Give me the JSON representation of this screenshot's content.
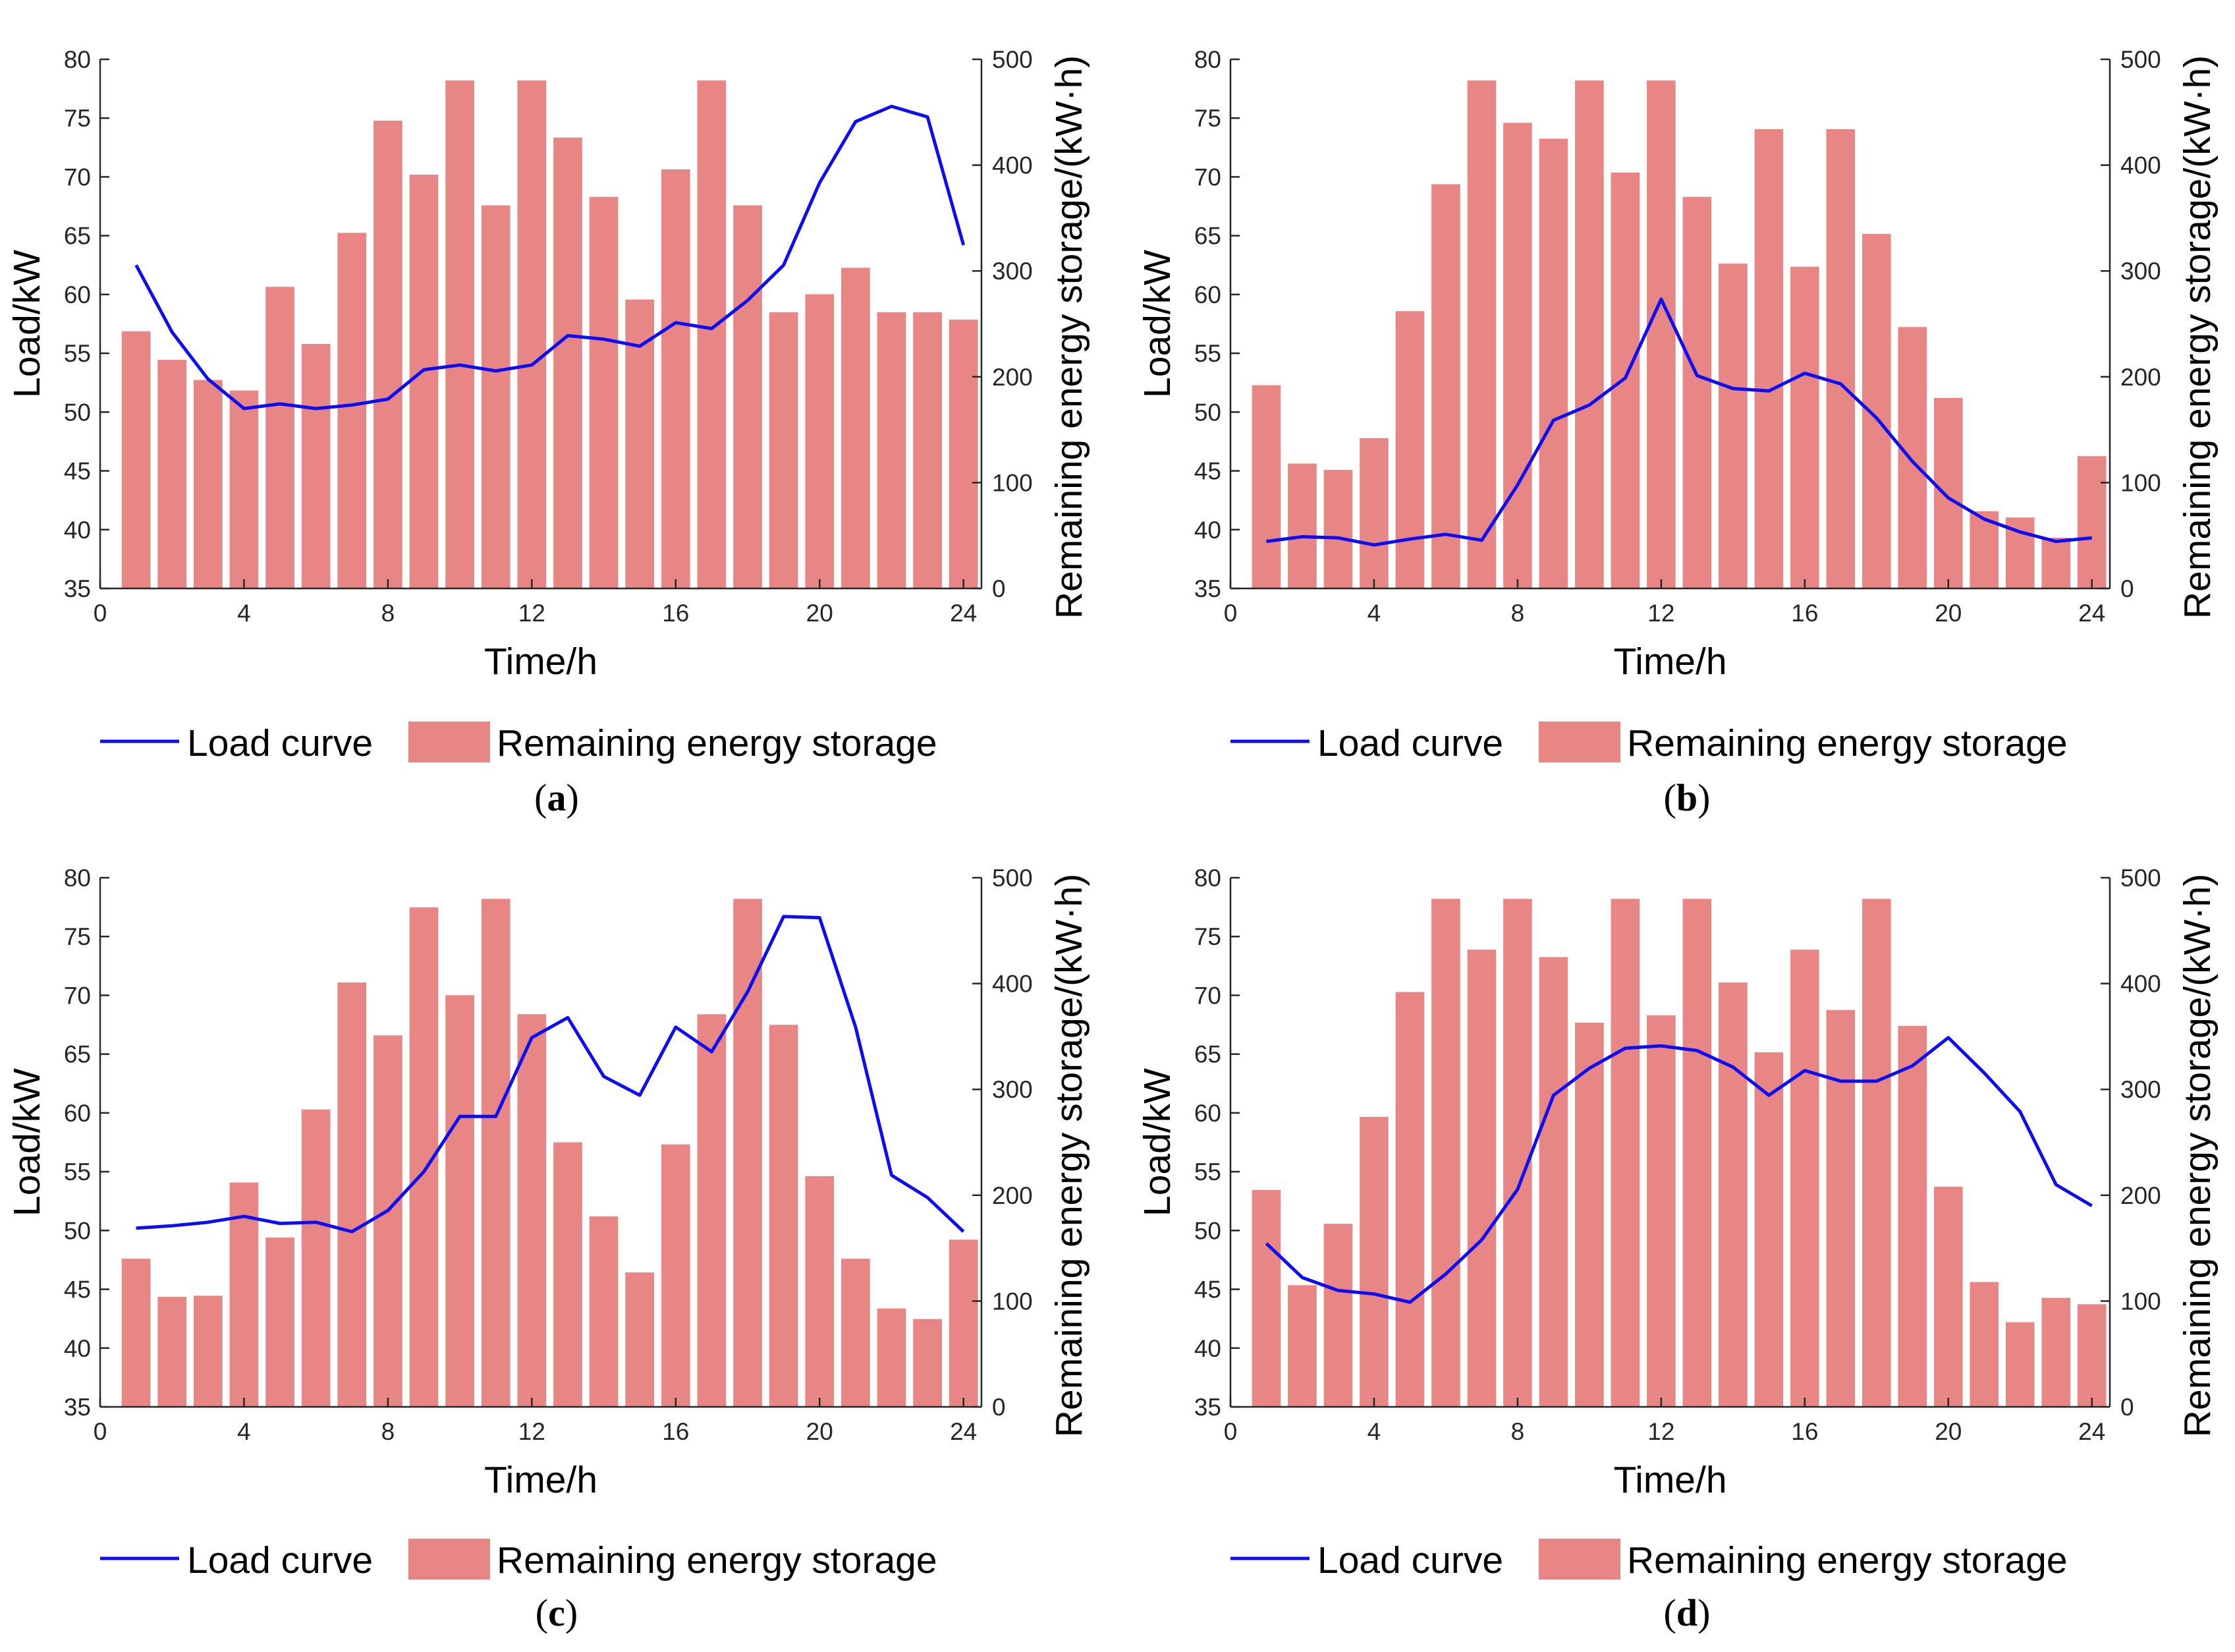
{
  "colors": {
    "bar": "#E88585",
    "line": "#0D0DF2",
    "axis": "#262626"
  },
  "legend": {
    "line_label": "Load curve",
    "bar_label": "Remaining energy storage"
  },
  "chart_data": [
    {
      "id": "a",
      "panel_label": "a",
      "type": "bar+line",
      "xlabel": "Time/h",
      "ylabel_left": "Load/kW",
      "ylabel_right": "Remaining energy storage/(kW·h)",
      "xlim": [
        0,
        24.5
      ],
      "ylim_left": [
        35,
        80
      ],
      "ylim_right": [
        0,
        500
      ],
      "x_ticks": [
        0,
        4,
        8,
        12,
        16,
        20,
        24
      ],
      "yleft_ticks": [
        35,
        40,
        45,
        50,
        55,
        60,
        65,
        70,
        75,
        80
      ],
      "yright_ticks": [
        0,
        100,
        200,
        300,
        400,
        500
      ],
      "x": [
        1,
        2,
        3,
        4,
        5,
        6,
        7,
        8,
        9,
        10,
        11,
        12,
        13,
        14,
        15,
        16,
        17,
        18,
        19,
        20,
        21,
        22,
        23,
        24
      ],
      "bars": [
        243,
        216,
        197,
        187,
        285,
        231,
        336,
        442,
        391,
        480,
        362,
        480,
        426,
        370,
        273,
        396,
        480,
        362,
        261,
        278,
        303,
        261,
        261,
        254
      ],
      "load": [
        62.5,
        56.8,
        52.8,
        50.3,
        50.7,
        50.3,
        50.6,
        51.1,
        53.6,
        54.0,
        53.5,
        54.0,
        56.5,
        56.2,
        55.6,
        57.6,
        57.1,
        59.5,
        62.5,
        69.5,
        74.7,
        76.0,
        75.1,
        64.2
      ]
    },
    {
      "id": "b",
      "panel_label": "b",
      "type": "bar+line",
      "xlabel": "Time/h",
      "ylabel_left": "Load/kW",
      "ylabel_right": "Remaining energy storage/(kW·h)",
      "xlim": [
        0,
        24.5
      ],
      "ylim_left": [
        35,
        80
      ],
      "ylim_right": [
        0,
        500
      ],
      "x_ticks": [
        0,
        4,
        8,
        12,
        16,
        20,
        24
      ],
      "yleft_ticks": [
        35,
        40,
        45,
        50,
        55,
        60,
        65,
        70,
        75,
        80
      ],
      "yright_ticks": [
        0,
        100,
        200,
        300,
        400,
        500
      ],
      "x": [
        1,
        2,
        3,
        4,
        5,
        6,
        7,
        8,
        9,
        10,
        11,
        12,
        13,
        14,
        15,
        16,
        17,
        18,
        19,
        20,
        21,
        22,
        23,
        24
      ],
      "bars": [
        192,
        118,
        112,
        142,
        262,
        382,
        480,
        440,
        425,
        480,
        393,
        480,
        370,
        307,
        434,
        304,
        434,
        335,
        247,
        180,
        73,
        67,
        48,
        125
      ],
      "load": [
        39.0,
        39.4,
        39.3,
        38.7,
        39.2,
        39.6,
        39.1,
        43.8,
        49.3,
        50.6,
        52.9,
        59.6,
        53.1,
        52.0,
        51.8,
        53.3,
        52.4,
        49.5,
        45.8,
        42.7,
        40.9,
        39.8,
        39.0,
        39.3
      ]
    },
    {
      "id": "c",
      "panel_label": "c",
      "type": "bar+line",
      "xlabel": "Time/h",
      "ylabel_left": "Load/kW",
      "ylabel_right": "Remaining energy storage/(kW·h)",
      "xlim": [
        0,
        24.5
      ],
      "ylim_left": [
        35,
        80
      ],
      "ylim_right": [
        0,
        500
      ],
      "x_ticks": [
        0,
        4,
        8,
        12,
        16,
        20,
        24
      ],
      "yleft_ticks": [
        35,
        40,
        45,
        50,
        55,
        60,
        65,
        70,
        75,
        80
      ],
      "yright_ticks": [
        0,
        100,
        200,
        300,
        400,
        500
      ],
      "x": [
        1,
        2,
        3,
        4,
        5,
        6,
        7,
        8,
        9,
        10,
        11,
        12,
        13,
        14,
        15,
        16,
        17,
        18,
        19,
        20,
        21,
        22,
        23,
        24
      ],
      "bars": [
        140,
        104,
        105,
        212,
        160,
        281,
        401,
        351,
        472,
        389,
        480,
        371,
        250,
        180,
        127,
        248,
        371,
        480,
        361,
        218,
        140,
        93,
        83,
        158
      ],
      "load": [
        50.2,
        50.4,
        50.7,
        51.2,
        50.6,
        50.7,
        49.9,
        51.7,
        55.0,
        59.7,
        59.7,
        66.4,
        68.1,
        63.1,
        61.5,
        67.3,
        65.2,
        70.3,
        76.7,
        76.6,
        67.3,
        54.7,
        52.8,
        49.9
      ]
    },
    {
      "id": "d",
      "panel_label": "d",
      "type": "bar+line",
      "xlabel": "Time/h",
      "ylabel_left": "Load/kW",
      "ylabel_right": "Remaining energy storage/(kW·h)",
      "xlim": [
        0,
        24.5
      ],
      "ylim_left": [
        35,
        80
      ],
      "ylim_right": [
        0,
        500
      ],
      "x_ticks": [
        0,
        4,
        8,
        12,
        16,
        20,
        24
      ],
      "yleft_ticks": [
        35,
        40,
        45,
        50,
        55,
        60,
        65,
        70,
        75,
        80
      ],
      "yright_ticks": [
        0,
        100,
        200,
        300,
        400,
        500
      ],
      "x": [
        1,
        2,
        3,
        4,
        5,
        6,
        7,
        8,
        9,
        10,
        11,
        12,
        13,
        14,
        15,
        16,
        17,
        18,
        19,
        20,
        21,
        22,
        23,
        24
      ],
      "bars": [
        205,
        115,
        173,
        274,
        392,
        480,
        432,
        480,
        425,
        363,
        480,
        370,
        480,
        401,
        335,
        432,
        375,
        480,
        360,
        208,
        118,
        80,
        103,
        97
      ],
      "load": [
        48.9,
        46.0,
        44.9,
        44.6,
        43.9,
        46.3,
        49.2,
        53.5,
        61.5,
        63.8,
        65.5,
        65.7,
        65.3,
        63.9,
        61.5,
        63.6,
        62.7,
        62.7,
        64.0,
        66.4,
        63.4,
        60.1,
        53.9,
        52.1
      ]
    }
  ]
}
